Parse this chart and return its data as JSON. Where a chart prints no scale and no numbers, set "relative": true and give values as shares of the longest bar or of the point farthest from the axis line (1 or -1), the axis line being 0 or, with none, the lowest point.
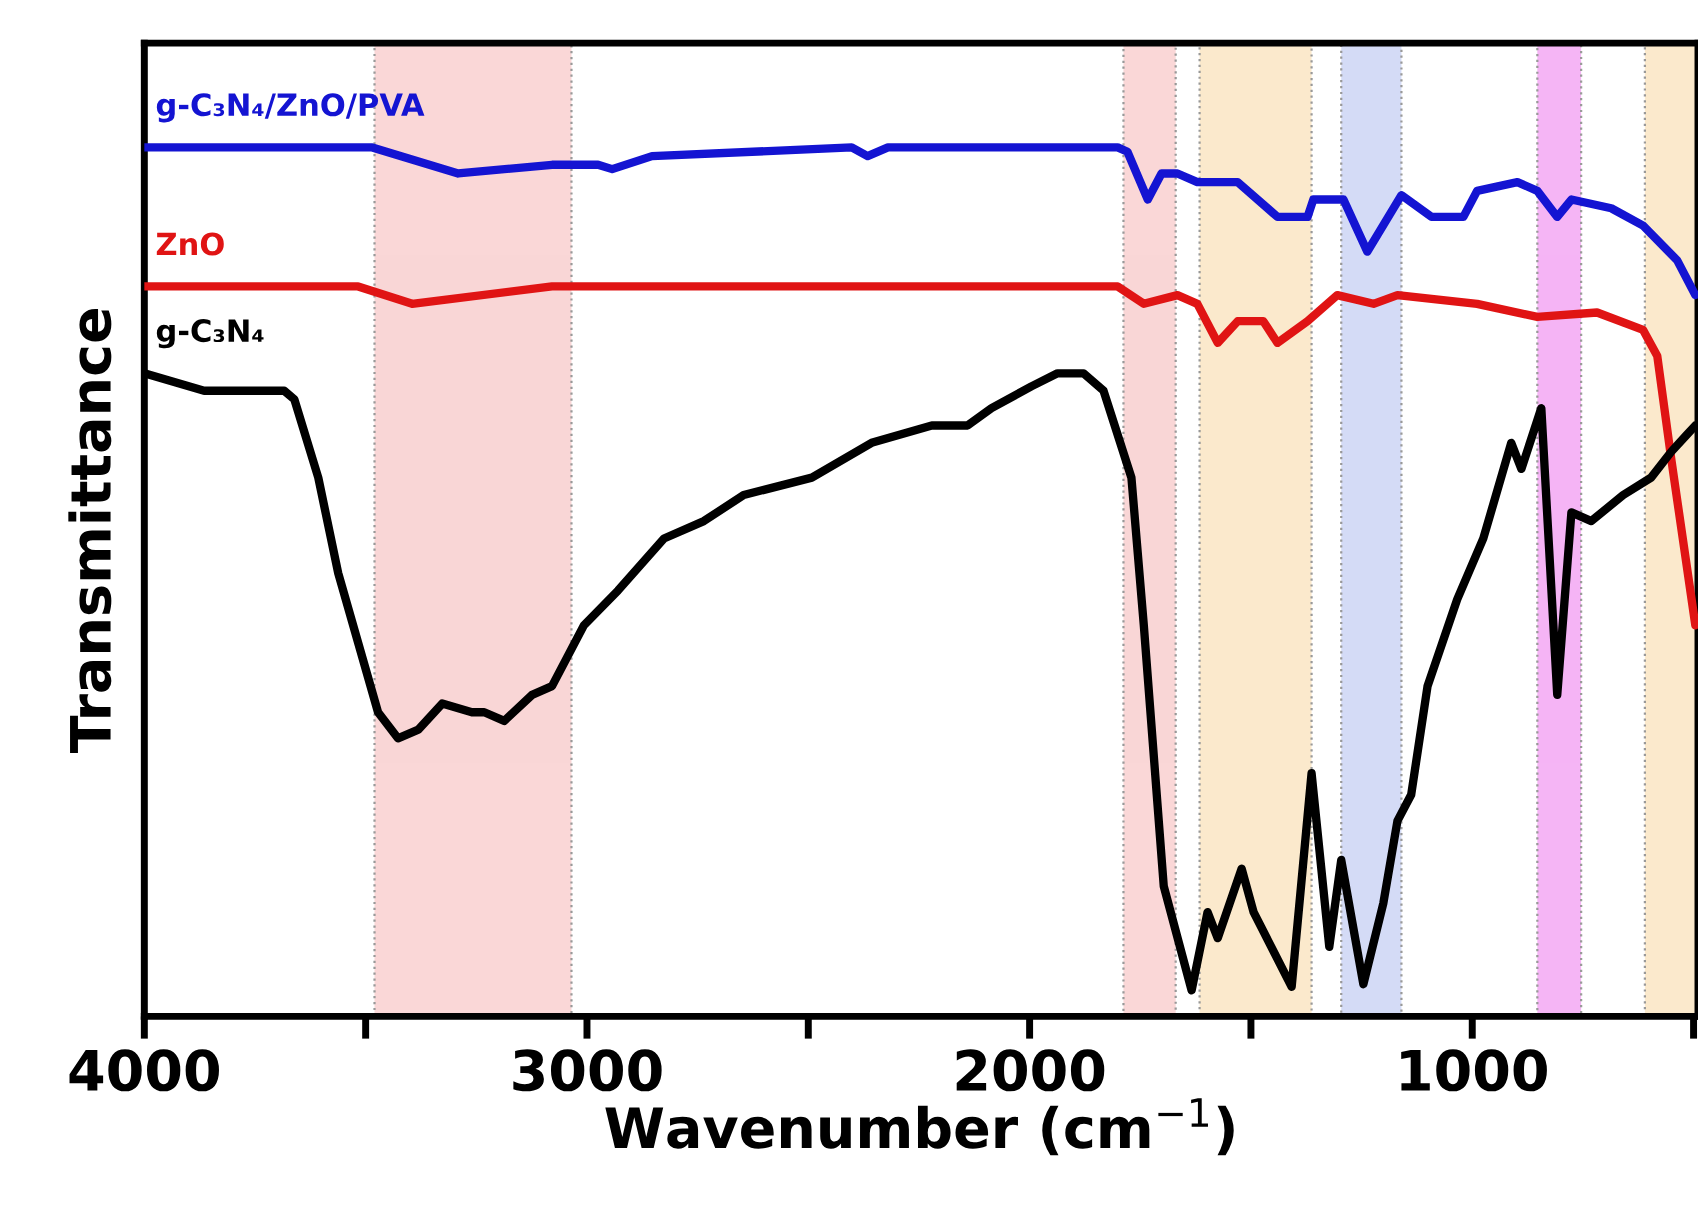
{
  "chart_data": {
    "type": "line",
    "xlabel": "Wavenumber (cm$^{−1}$)",
    "ylabel": "Transmittance",
    "relative": true,
    "tick_labels": "x",
    "grid": false,
    "legend": false,
    "marker": "none",
    "line_style": "solid",
    "xlim": [
      4000,
      490
    ],
    "xticks": [
      4000,
      {
        "value": 3500,
        "label": null
      },
      3000,
      {
        "value": 2500,
        "label": null
      },
      2000,
      {
        "value": 1500,
        "label": null
      },
      1000,
      {
        "value": 500,
        "label": null
      }
    ],
    "bands": [
      {
        "axis": "x",
        "from": 3480,
        "to": 3035,
        "color": "#f9d0d0"
      },
      {
        "axis": "x",
        "from": 1788,
        "to": 1670,
        "color": "#f9d0d0"
      },
      {
        "axis": "x",
        "from": 1616,
        "to": 1363,
        "color": "#fbe6c4"
      },
      {
        "axis": "x",
        "from": 1296,
        "to": 1160,
        "color": "#cdd5f5"
      },
      {
        "axis": "x",
        "from": 853,
        "to": 754,
        "color": "#f4a8f4"
      },
      {
        "axis": "x",
        "from": 610,
        "to": 490,
        "color": "#fbe6c4"
      }
    ],
    "series": [
      {
        "name": "g-C₃N₄/ZnO/PVA",
        "color": "#1414d2",
        "x": [
          4000,
          3485,
          3291,
          3079,
          2975,
          2943,
          2853,
          2402,
          2366,
          2320,
          1801,
          1779,
          1733,
          1702,
          1666,
          1621,
          1530,
          1440,
          1372,
          1359,
          1291,
          1237,
          1160,
          1092,
          1020,
          989,
          898,
          853,
          808,
          776,
          686,
          614,
          537,
          496
        ],
        "values": [
          1.0,
          1.0,
          0.97,
          0.98,
          0.98,
          0.975,
          0.99,
          1.0,
          0.99,
          1.0,
          1.0,
          0.995,
          0.94,
          0.97,
          0.97,
          0.96,
          0.96,
          0.92,
          0.92,
          0.94,
          0.94,
          0.88,
          0.945,
          0.92,
          0.92,
          0.95,
          0.96,
          0.95,
          0.92,
          0.94,
          0.93,
          0.91,
          0.87,
          0.83
        ]
      },
      {
        "name": "ZnO",
        "color": "#e01414",
        "x": [
          4000,
          3517,
          3395,
          3079,
          1801,
          1742,
          1666,
          1621,
          1575,
          1530,
          1472,
          1440,
          1372,
          1305,
          1223,
          1169,
          989,
          853,
          718,
          614,
          582,
          550,
          496
        ],
        "values": [
          0.84,
          0.84,
          0.82,
          0.84,
          0.84,
          0.82,
          0.83,
          0.82,
          0.775,
          0.8,
          0.8,
          0.775,
          0.8,
          0.83,
          0.82,
          0.83,
          0.82,
          0.805,
          0.81,
          0.79,
          0.76,
          0.64,
          0.45
        ]
      },
      {
        "name": "g-C₃N₄",
        "color": "#000000",
        "x": [
          4000,
          3865,
          3756,
          3684,
          3661,
          3607,
          3562,
          3472,
          3427,
          3381,
          3327,
          3260,
          3232,
          3187,
          3124,
          3079,
          3007,
          2930,
          2826,
          2736,
          2646,
          2492,
          2357,
          2221,
          2140,
          2086,
          1996,
          1937,
          1878,
          1833,
          1770,
          1742,
          1697,
          1634,
          1598,
          1575,
          1521,
          1494,
          1454,
          1408,
          1363,
          1323,
          1296,
          1246,
          1201,
          1169,
          1138,
          1101,
          1034,
          975,
          912,
          889,
          844,
          808,
          776,
          731,
          659,
          596,
          550,
          514,
          496
        ],
        "values": [
          0.74,
          0.72,
          0.72,
          0.72,
          0.71,
          0.62,
          0.51,
          0.35,
          0.32,
          0.33,
          0.36,
          0.35,
          0.35,
          0.34,
          0.37,
          0.38,
          0.45,
          0.49,
          0.55,
          0.57,
          0.6,
          0.62,
          0.66,
          0.68,
          0.68,
          0.7,
          0.725,
          0.74,
          0.74,
          0.72,
          0.62,
          0.45,
          0.15,
          0.03,
          0.12,
          0.09,
          0.17,
          0.12,
          0.08,
          0.034,
          0.28,
          0.08,
          0.18,
          0.037,
          0.13,
          0.225,
          0.255,
          0.38,
          0.48,
          0.55,
          0.66,
          0.63,
          0.7,
          0.37,
          0.58,
          0.57,
          0.6,
          0.62,
          0.65,
          0.67,
          0.68
        ]
      }
    ]
  }
}
